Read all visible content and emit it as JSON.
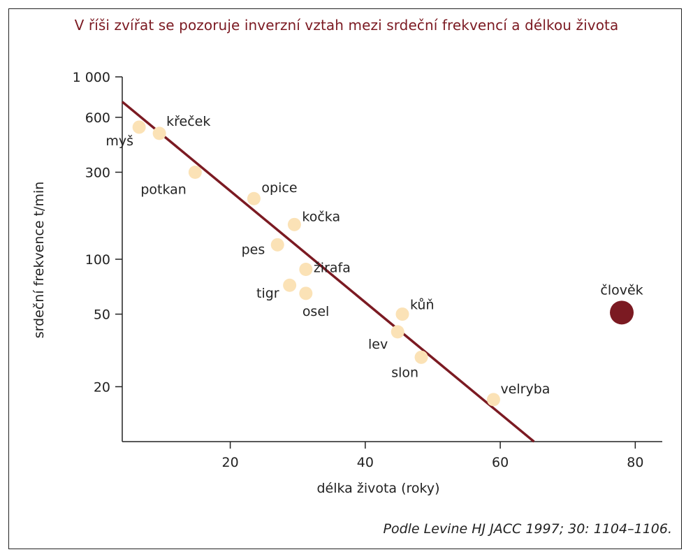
{
  "chart_data": {
    "type": "scatter",
    "title": "V říši zvířat se pozoruje inverzní vztah mezi srdeční frekvencí a délkou života",
    "xlabel": "délka života (roky)",
    "ylabel": "srdeční frekvence t/min",
    "xlim": [
      4,
      84
    ],
    "ylim": [
      10,
      1000
    ],
    "yscale": "log",
    "xticks": [
      20,
      40,
      60,
      80
    ],
    "yticks": [
      {
        "value": 1000,
        "label": "1 000"
      },
      {
        "value": 600,
        "label": "600"
      },
      {
        "value": 300,
        "label": "300"
      },
      {
        "value": 100,
        "label": "100"
      },
      {
        "value": 50,
        "label": "50"
      },
      {
        "value": 20,
        "label": "20"
      }
    ],
    "grid": false,
    "points": [
      {
        "label": "myš",
        "x": 6.5,
        "y": 530
      },
      {
        "label": "křeček",
        "x": 9.5,
        "y": 490
      },
      {
        "label": "potkan",
        "x": 14.8,
        "y": 300
      },
      {
        "label": "opice",
        "x": 23.5,
        "y": 215
      },
      {
        "label": "kočka",
        "x": 29.5,
        "y": 155
      },
      {
        "label": "pes",
        "x": 27.0,
        "y": 120
      },
      {
        "label": "žirafa",
        "x": 31.2,
        "y": 88
      },
      {
        "label": "tigr",
        "x": 28.8,
        "y": 72
      },
      {
        "label": "osel",
        "x": 31.2,
        "y": 65
      },
      {
        "label": "kůň",
        "x": 45.5,
        "y": 50
      },
      {
        "label": "lev",
        "x": 44.8,
        "y": 40
      },
      {
        "label": "slon",
        "x": 48.3,
        "y": 29
      },
      {
        "label": "velryba",
        "x": 59.0,
        "y": 17
      },
      {
        "label": "člověk",
        "x": 78.0,
        "y": 51,
        "highlight": true
      }
    ],
    "trend_line": {
      "from": {
        "x": 4,
        "y": 730
      },
      "to": {
        "x": 65,
        "y": 10
      }
    },
    "colors": {
      "points": "#fbe2b6",
      "highlight": "#7b1a22",
      "line": "#7b1a22",
      "title": "#7b1a22"
    }
  },
  "source": "Podle Levine HJ JACC 1997; 30: 1104–1106."
}
